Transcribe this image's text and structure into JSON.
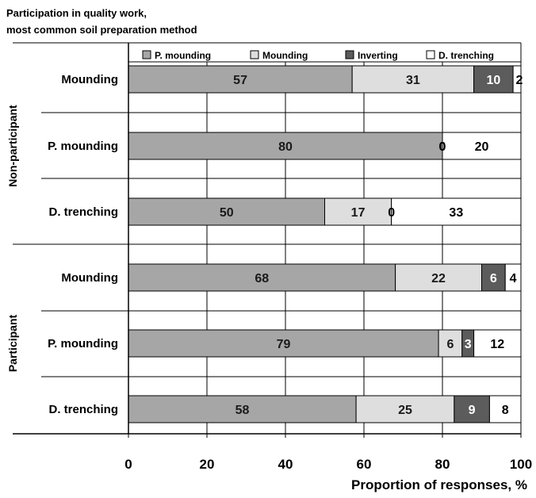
{
  "title_lines": [
    "Participation in quality work,",
    "most common soil preparation method"
  ],
  "chart_data": {
    "type": "bar",
    "orientation": "horizontal",
    "stacked": true,
    "title": "",
    "xlabel": "Proportion of responses, %",
    "ylabel": "",
    "xlim": [
      0,
      100
    ],
    "xticks": [
      "0",
      "20",
      "40",
      "60",
      "80",
      "100"
    ],
    "grid": true,
    "legend_position": "top",
    "groups": [
      {
        "name": "Non-participant",
        "categories": [
          "Mounding",
          "P. mounding",
          "D. trenching"
        ]
      },
      {
        "name": "Participant",
        "categories": [
          "Mounding",
          "P. mounding",
          "D. trenching"
        ]
      }
    ],
    "categories": [
      "Mounding",
      "P. mounding",
      "D. trenching",
      "Mounding",
      "P. mounding",
      "D. trenching"
    ],
    "series": [
      {
        "name": "P. mounding",
        "color": "#a6a6a6",
        "label_color": "#1a1a1a",
        "values": [
          57,
          80,
          50,
          68,
          79,
          58
        ]
      },
      {
        "name": "Mounding",
        "color": "#dedede",
        "label_color": "#1a1a1a",
        "values": [
          31,
          0,
          17,
          22,
          6,
          25
        ]
      },
      {
        "name": "Inverting",
        "color": "#5c5c5c",
        "label_color": "#ffffff",
        "values": [
          10,
          0,
          0,
          6,
          3,
          9
        ]
      },
      {
        "name": "D. trenching",
        "color": "#ffffff",
        "label_color": "#000000",
        "values": [
          2,
          20,
          33,
          4,
          12,
          8
        ]
      }
    ]
  }
}
